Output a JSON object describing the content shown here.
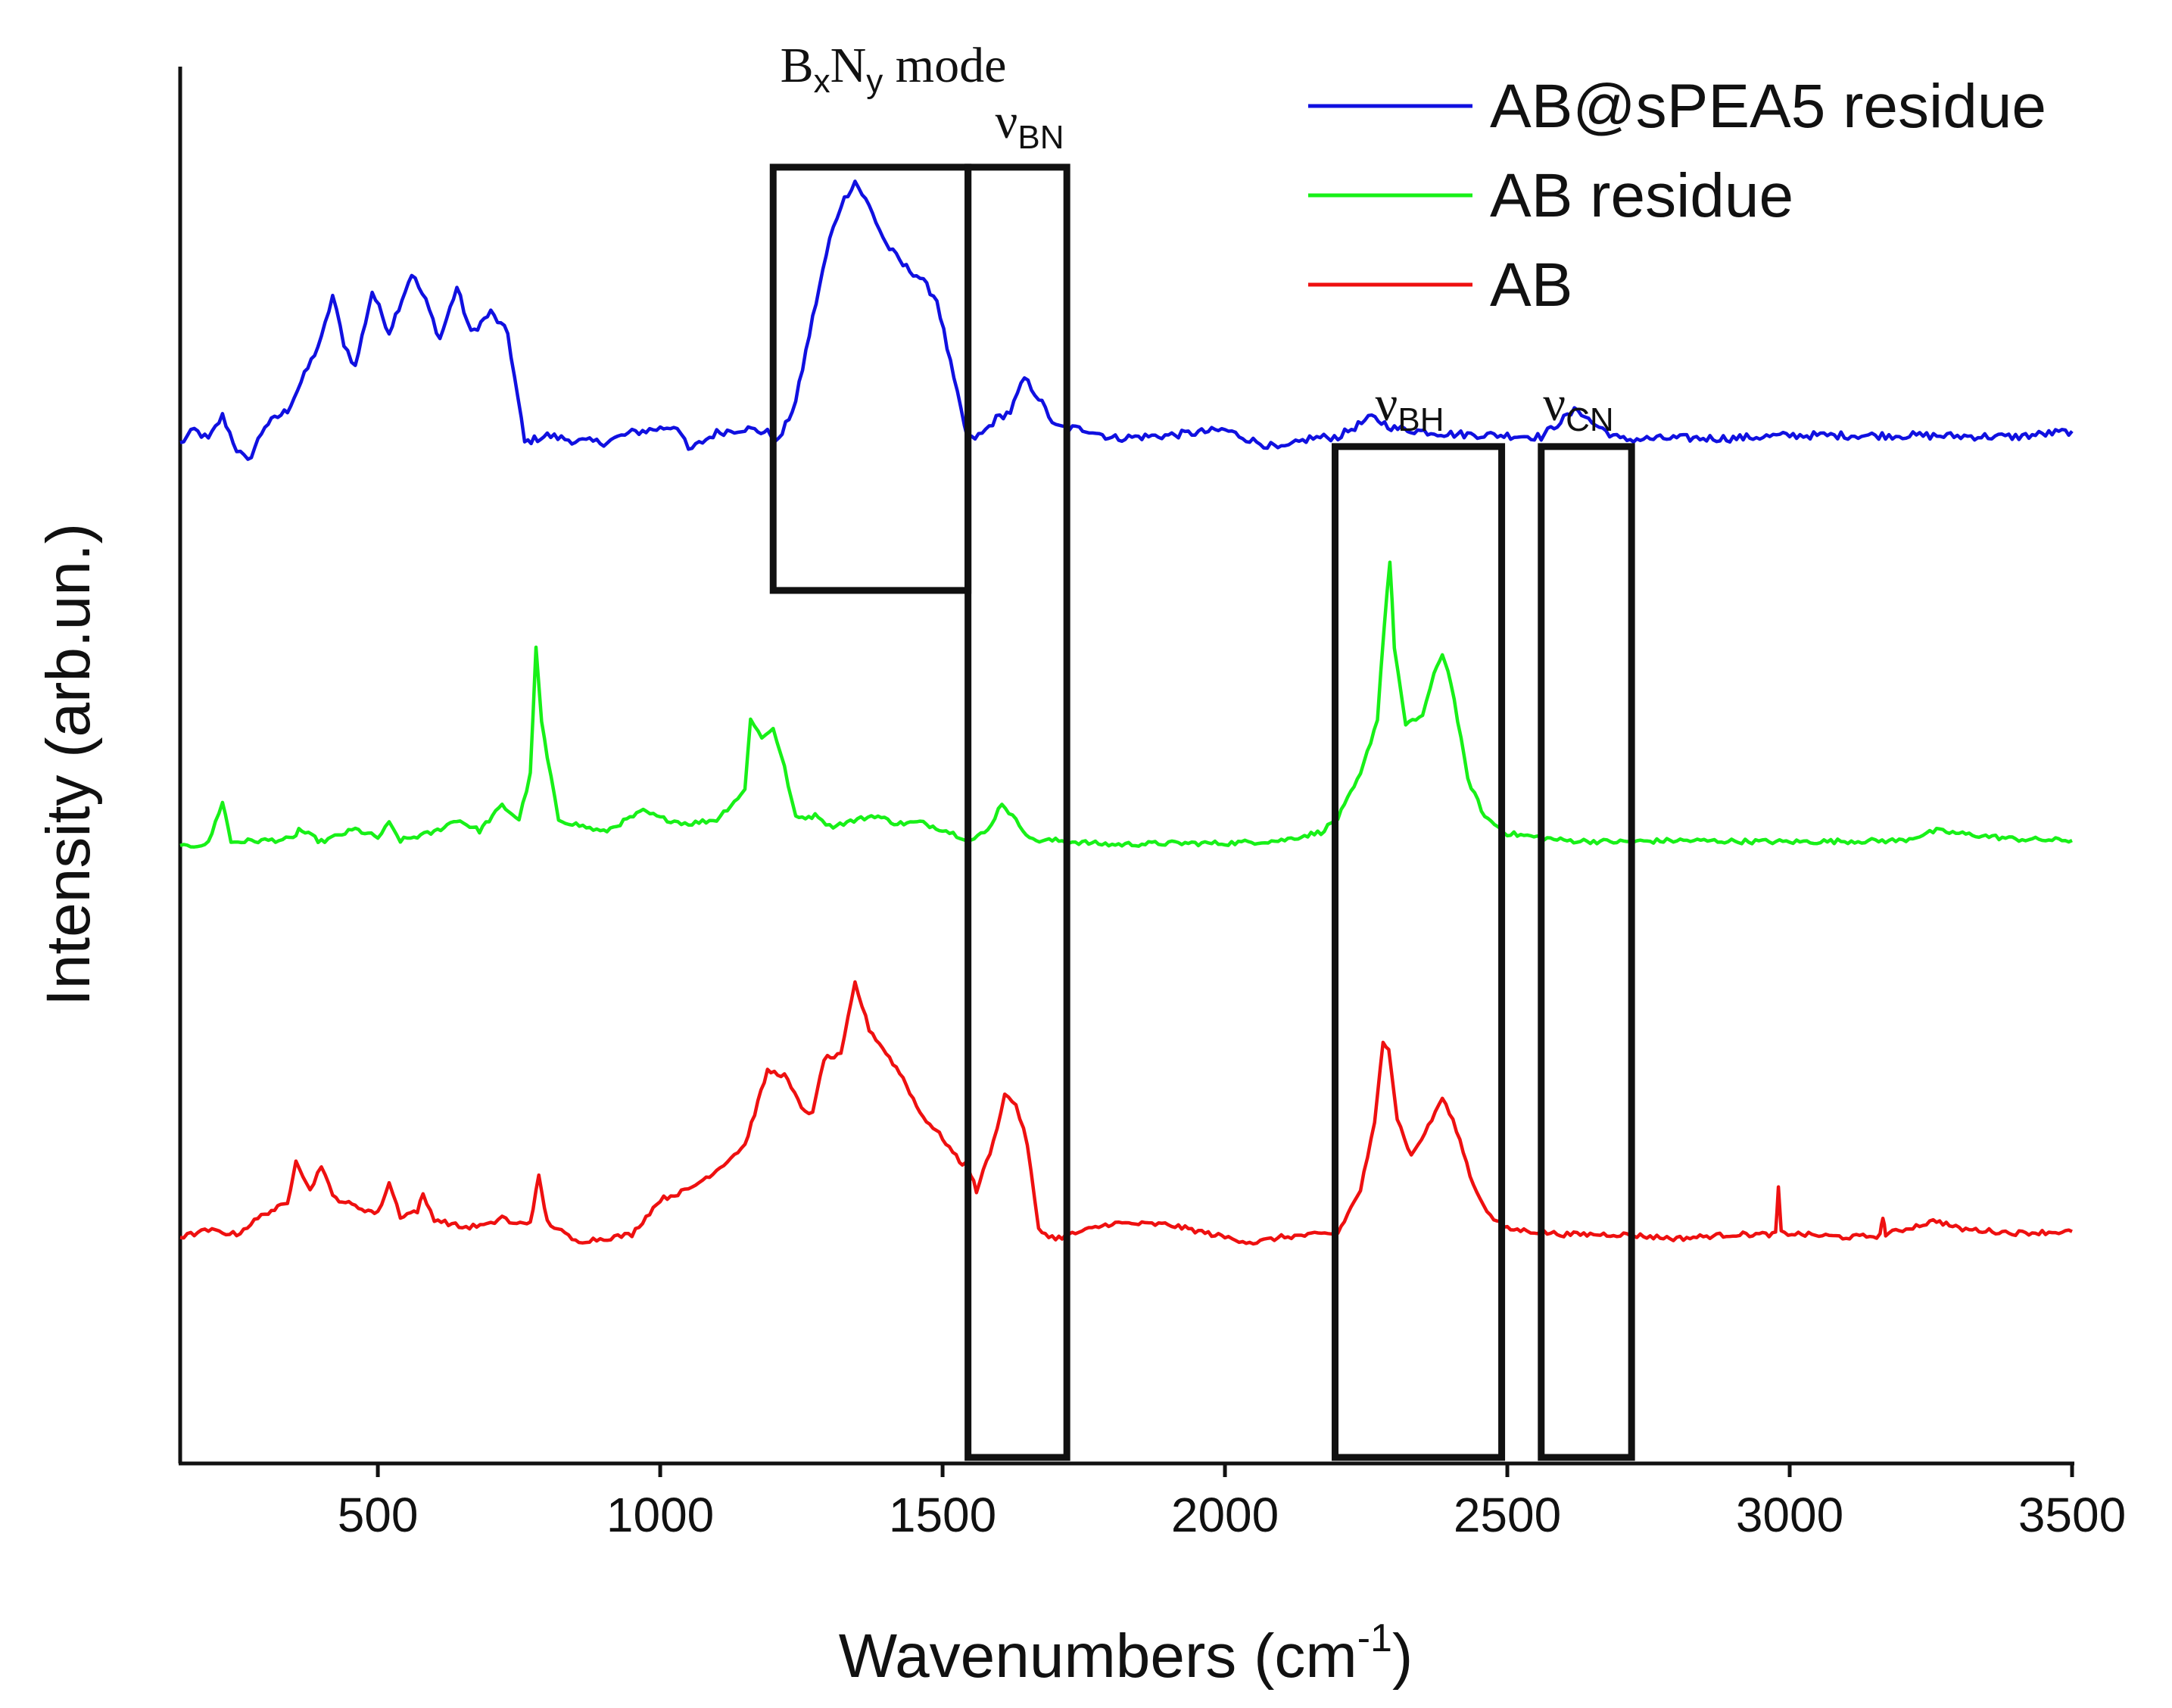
{
  "chart_data": {
    "type": "line",
    "xlabel": "Wavenumbers (cm",
    "xlabel_sup": "-1",
    "xlabel_end": ")",
    "ylabel": "Intensity (arb.un.)",
    "xlim": [
      150,
      3500
    ],
    "xticks": [
      500,
      1000,
      1500,
      2000,
      2500,
      3000,
      3500
    ],
    "ylim": [
      0,
      100
    ],
    "legend_position": "top-right",
    "series": [
      {
        "name": "AB@sPEA5 residue",
        "color": "#1010e0",
        "points": [
          [
            150,
            73
          ],
          [
            175,
            74
          ],
          [
            200,
            73.3
          ],
          [
            225,
            75
          ],
          [
            250,
            72.6
          ],
          [
            270,
            71.7
          ],
          [
            300,
            74.3
          ],
          [
            340,
            75.4
          ],
          [
            370,
            77.9
          ],
          [
            400,
            80.5
          ],
          [
            420,
            83.6
          ],
          [
            440,
            80.2
          ],
          [
            460,
            78.5
          ],
          [
            490,
            83.9
          ],
          [
            520,
            81
          ],
          [
            560,
            85.2
          ],
          [
            585,
            83.2
          ],
          [
            610,
            80.5
          ],
          [
            640,
            84.2
          ],
          [
            665,
            80.9
          ],
          [
            700,
            82.4
          ],
          [
            730,
            80.9
          ],
          [
            760,
            73.1
          ],
          [
            800,
            73.6
          ],
          [
            850,
            73.2
          ],
          [
            900,
            73.1
          ],
          [
            950,
            73.8
          ],
          [
            1000,
            74.1
          ],
          [
            1030,
            74.3
          ],
          [
            1050,
            72.5
          ],
          [
            1100,
            73.8
          ],
          [
            1150,
            74.1
          ],
          [
            1190,
            73.8
          ],
          [
            1210,
            73.2
          ],
          [
            1240,
            76
          ],
          [
            1270,
            82
          ],
          [
            1300,
            87.6
          ],
          [
            1320,
            90.1
          ],
          [
            1345,
            91.8
          ],
          [
            1370,
            90
          ],
          [
            1400,
            87.3
          ],
          [
            1430,
            85.8
          ],
          [
            1460,
            84.9
          ],
          [
            1490,
            83.3
          ],
          [
            1520,
            77.6
          ],
          [
            1545,
            73.2
          ],
          [
            1570,
            73.7
          ],
          [
            1595,
            74.8
          ],
          [
            1620,
            75.3
          ],
          [
            1645,
            77.7
          ],
          [
            1670,
            76.3
          ],
          [
            1700,
            74.2
          ],
          [
            1760,
            74
          ],
          [
            1800,
            73.4
          ],
          [
            1900,
            73.6
          ],
          [
            2000,
            74
          ],
          [
            2050,
            73.2
          ],
          [
            2100,
            72.6
          ],
          [
            2150,
            73.4
          ],
          [
            2200,
            73.5
          ],
          [
            2260,
            74.9
          ],
          [
            2300,
            74.1
          ],
          [
            2400,
            73.7
          ],
          [
            2500,
            73.6
          ],
          [
            2560,
            73.5
          ],
          [
            2600,
            74.8
          ],
          [
            2625,
            75.5
          ],
          [
            2650,
            74.5
          ],
          [
            2700,
            73.3
          ],
          [
            2800,
            73.4
          ],
          [
            2900,
            73.4
          ],
          [
            3000,
            73.6
          ],
          [
            3200,
            73.6
          ],
          [
            3400,
            73.5
          ],
          [
            3500,
            73.9
          ]
        ]
      },
      {
        "name": "AB residue",
        "color": "#18f018",
        "points": [
          [
            150,
            44.1
          ],
          [
            200,
            44.4
          ],
          [
            225,
            47.4
          ],
          [
            240,
            44.5
          ],
          [
            300,
            44.6
          ],
          [
            350,
            44.7
          ],
          [
            360,
            45.4
          ],
          [
            400,
            44.5
          ],
          [
            460,
            45.4
          ],
          [
            500,
            44.8
          ],
          [
            520,
            45.8
          ],
          [
            540,
            44.6
          ],
          [
            600,
            45.2
          ],
          [
            640,
            46.1
          ],
          [
            680,
            45.3
          ],
          [
            720,
            47.1
          ],
          [
            750,
            46.1
          ],
          [
            770,
            49.3
          ],
          [
            780,
            58.3
          ],
          [
            790,
            53.1
          ],
          [
            800,
            50.5
          ],
          [
            820,
            46.1
          ],
          [
            900,
            45.2
          ],
          [
            970,
            46.7
          ],
          [
            1000,
            46.2
          ],
          [
            1050,
            45.8
          ],
          [
            1100,
            46.1
          ],
          [
            1150,
            48.2
          ],
          [
            1160,
            53.4
          ],
          [
            1180,
            51.9
          ],
          [
            1200,
            52.7
          ],
          [
            1220,
            49.8
          ],
          [
            1240,
            46.2
          ],
          [
            1280,
            46.4
          ],
          [
            1300,
            45.6
          ],
          [
            1380,
            46.4
          ],
          [
            1420,
            45.8
          ],
          [
            1460,
            45.9
          ],
          [
            1500,
            45.4
          ],
          [
            1550,
            44.6
          ],
          [
            1580,
            45.3
          ],
          [
            1605,
            47.3
          ],
          [
            1630,
            46
          ],
          [
            1660,
            44.6
          ],
          [
            1700,
            44.6
          ],
          [
            1800,
            44.3
          ],
          [
            1900,
            44.4
          ],
          [
            2000,
            44.4
          ],
          [
            2100,
            44.6
          ],
          [
            2170,
            45.2
          ],
          [
            2200,
            46.2
          ],
          [
            2240,
            49.3
          ],
          [
            2270,
            53.3
          ],
          [
            2282,
            60
          ],
          [
            2292,
            64.6
          ],
          [
            2300,
            58.5
          ],
          [
            2320,
            52.8
          ],
          [
            2350,
            53.6
          ],
          [
            2370,
            56.4
          ],
          [
            2385,
            58
          ],
          [
            2400,
            56
          ],
          [
            2430,
            49
          ],
          [
            2460,
            46.3
          ],
          [
            2500,
            45.1
          ],
          [
            2600,
            44.6
          ],
          [
            2700,
            44.5
          ],
          [
            2800,
            44.6
          ],
          [
            3000,
            44.5
          ],
          [
            3200,
            44.6
          ],
          [
            3260,
            45.3
          ],
          [
            3300,
            45.1
          ],
          [
            3400,
            44.7
          ],
          [
            3500,
            44.6
          ]
        ]
      },
      {
        "name": "AB",
        "color": "#ee1010",
        "points": [
          [
            150,
            16.2
          ],
          [
            200,
            16.7
          ],
          [
            250,
            16.4
          ],
          [
            300,
            17.9
          ],
          [
            340,
            18.6
          ],
          [
            355,
            21.8
          ],
          [
            380,
            19.5
          ],
          [
            400,
            21.4
          ],
          [
            420,
            19.1
          ],
          [
            460,
            18.4
          ],
          [
            500,
            17.9
          ],
          [
            520,
            20.1
          ],
          [
            540,
            17.7
          ],
          [
            570,
            18.1
          ],
          [
            580,
            19.2
          ],
          [
            600,
            17.5
          ],
          [
            650,
            16.9
          ],
          [
            700,
            17.1
          ],
          [
            720,
            17.7
          ],
          [
            740,
            17.1
          ],
          [
            770,
            17.3
          ],
          [
            785,
            20.5
          ],
          [
            800,
            17.3
          ],
          [
            850,
            15.9
          ],
          [
            900,
            16.1
          ],
          [
            950,
            16.4
          ],
          [
            1000,
            18.9
          ],
          [
            1050,
            19.6
          ],
          [
            1100,
            21
          ],
          [
            1150,
            22.8
          ],
          [
            1190,
            28.1
          ],
          [
            1220,
            27.8
          ],
          [
            1250,
            25.5
          ],
          [
            1270,
            25
          ],
          [
            1290,
            29
          ],
          [
            1320,
            29.2
          ],
          [
            1345,
            34.4
          ],
          [
            1370,
            31.1
          ],
          [
            1400,
            29.4
          ],
          [
            1430,
            27.6
          ],
          [
            1460,
            25.1
          ],
          [
            1500,
            23.3
          ],
          [
            1530,
            21.6
          ],
          [
            1545,
            21.3
          ],
          [
            1560,
            19.5
          ],
          [
            1590,
            23
          ],
          [
            1610,
            26.4
          ],
          [
            1630,
            25.7
          ],
          [
            1650,
            22.9
          ],
          [
            1670,
            16.7
          ],
          [
            1700,
            16.1
          ],
          [
            1800,
            17.2
          ],
          [
            1900,
            17.1
          ],
          [
            2000,
            16.2
          ],
          [
            2050,
            15.8
          ],
          [
            2100,
            16.2
          ],
          [
            2200,
            16.5
          ],
          [
            2240,
            19.6
          ],
          [
            2265,
            24.3
          ],
          [
            2280,
            30.2
          ],
          [
            2290,
            29.8
          ],
          [
            2305,
            24.7
          ],
          [
            2330,
            22
          ],
          [
            2360,
            24.1
          ],
          [
            2385,
            26.2
          ],
          [
            2410,
            23.9
          ],
          [
            2440,
            19.9
          ],
          [
            2470,
            17.7
          ],
          [
            2500,
            16.8
          ],
          [
            2600,
            16.4
          ],
          [
            2700,
            16.4
          ],
          [
            2800,
            16.1
          ],
          [
            2900,
            16.4
          ],
          [
            2975,
            16.4
          ],
          [
            2980,
            19.7
          ],
          [
            2985,
            16.5
          ],
          [
            3100,
            16.2
          ],
          [
            3160,
            16.3
          ],
          [
            3165,
            17.7
          ],
          [
            3170,
            16.4
          ],
          [
            3260,
            17.4
          ],
          [
            3300,
            16.8
          ],
          [
            3400,
            16.5
          ],
          [
            3500,
            16.6
          ]
        ]
      }
    ],
    "annotations": [
      {
        "label_main": "B",
        "sub1": "x",
        "mid": "N",
        "sub2": "y",
        "tail": " mode",
        "x_range": [
          1200,
          1545
        ],
        "y_range": [
          62.5,
          92.8
        ]
      },
      {
        "symbol": "ν",
        "sub": "BN",
        "x_range": [
          1545,
          1720
        ],
        "y_range": [
          0,
          92.8
        ]
      },
      {
        "symbol": "ν",
        "sub": "BH",
        "x_range": [
          2195,
          2490
        ],
        "y_range": [
          0,
          72.8
        ]
      },
      {
        "symbol": "ν",
        "sub": "CN",
        "x_range": [
          2560,
          2720
        ],
        "y_range": [
          0,
          72.8
        ]
      }
    ]
  }
}
